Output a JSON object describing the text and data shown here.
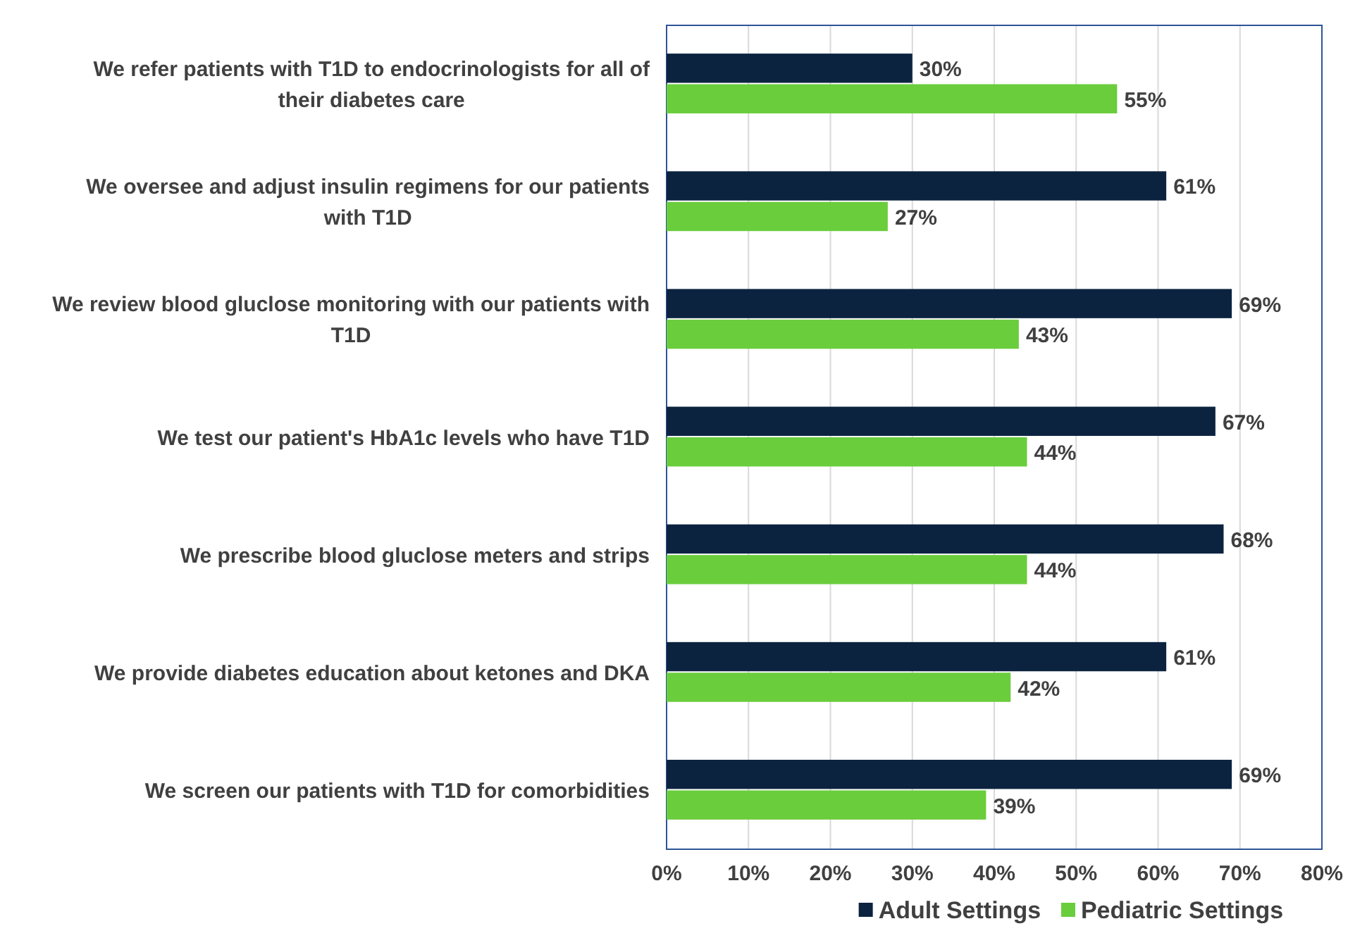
{
  "chart_data": {
    "type": "bar",
    "orientation": "horizontal",
    "categories": [
      "We refer patients with T1D to endocrinologists for all of their diabetes care",
      "We oversee and adjust insulin regimens for our patients with T1D",
      "We review blood gluclose monitoring with our patients with T1D",
      "We test our patient's HbA1c levels who have T1D",
      "We prescribe blood gluclose meters and strips",
      "We provide diabetes education about ketones and DKA",
      "We screen our patients with T1D for comorbidities"
    ],
    "series": [
      {
        "name": "Adult Settings",
        "color": "#0c2340",
        "values": [
          30,
          61,
          69,
          67,
          68,
          61,
          69
        ],
        "value_labels": [
          "30%",
          "61%",
          "69%",
          "67%",
          "68%",
          "61%",
          "69%"
        ]
      },
      {
        "name": "Pediatric Settings",
        "color": "#6acd3c",
        "values": [
          55,
          27,
          43,
          44,
          44,
          42,
          39
        ],
        "value_labels": [
          "55%",
          "27%",
          "43%",
          "44%",
          "44%",
          "42%",
          "39%"
        ]
      }
    ],
    "xlim": [
      0,
      80
    ],
    "xticks": [
      {
        "value": 0,
        "label": "0%"
      },
      {
        "value": 10,
        "label": "10%"
      },
      {
        "value": 20,
        "label": "20%"
      },
      {
        "value": 30,
        "label": "30%"
      },
      {
        "value": 40,
        "label": "40%"
      },
      {
        "value": 50,
        "label": "50%"
      },
      {
        "value": 60,
        "label": "60%"
      },
      {
        "value": 70,
        "label": "70%"
      },
      {
        "value": 80,
        "label": "80%"
      }
    ],
    "grid": "x",
    "legend": "bottom"
  }
}
